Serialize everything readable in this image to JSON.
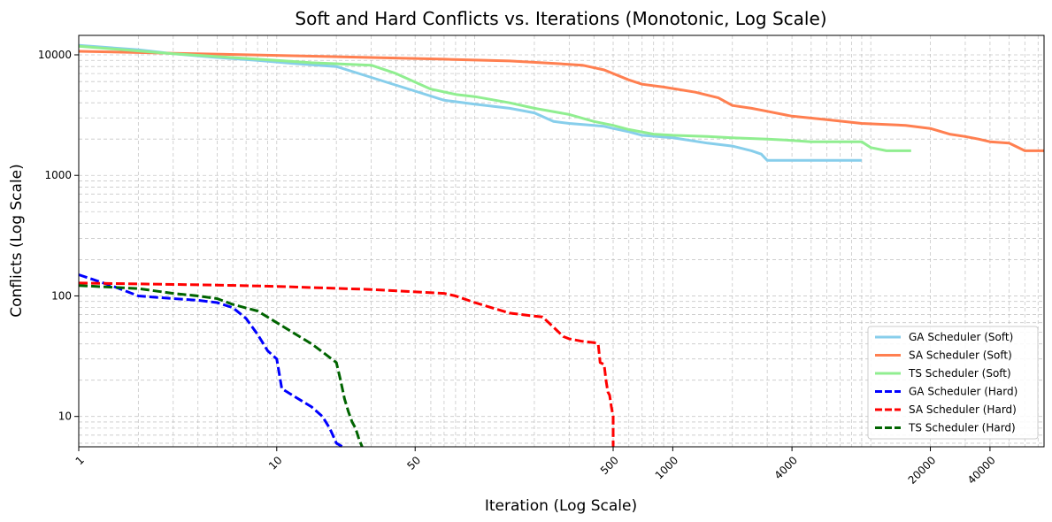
{
  "chart_data": {
    "type": "line",
    "title": "Soft and Hard Conflicts vs. Iterations (Monotonic, Log Scale)",
    "xlabel": "Iteration (Log Scale)",
    "ylabel": "Conflicts (Log Scale)",
    "xscale": "log",
    "yscale": "log",
    "xlim": [
      1,
      75000
    ],
    "ylim": [
      5.6,
      14500
    ],
    "x_ticks": [
      1,
      10,
      50,
      500,
      1000,
      4000,
      20000,
      40000
    ],
    "x_tick_labels": [
      "1",
      "10",
      "50",
      "500",
      "1000",
      "4000",
      "20000",
      "40000"
    ],
    "y_ticks": [
      10,
      100,
      1000,
      10000
    ],
    "y_tick_labels": [
      "10",
      "100",
      "1000",
      "10000"
    ],
    "grid": true,
    "legend_position": "lower-right",
    "series": [
      {
        "name": "GA Scheduler (Soft)",
        "color": "#87CEEB",
        "dash": "solid",
        "points": [
          [
            1,
            12000
          ],
          [
            2,
            11000
          ],
          [
            3,
            10200
          ],
          [
            5,
            9500
          ],
          [
            8,
            9000
          ],
          [
            12,
            8500
          ],
          [
            20,
            8000
          ],
          [
            30,
            6500
          ],
          [
            50,
            5000
          ],
          [
            70,
            4200
          ],
          [
            100,
            3900
          ],
          [
            150,
            3600
          ],
          [
            200,
            3300
          ],
          [
            250,
            2800
          ],
          [
            300,
            2700
          ],
          [
            400,
            2600
          ],
          [
            450,
            2550
          ],
          [
            500,
            2450
          ],
          [
            600,
            2300
          ],
          [
            700,
            2150
          ],
          [
            1000,
            2050
          ],
          [
            1500,
            1850
          ],
          [
            2000,
            1750
          ],
          [
            2500,
            1600
          ],
          [
            2800,
            1500
          ],
          [
            3000,
            1330
          ],
          [
            5000,
            1330
          ],
          [
            9000,
            1330
          ]
        ]
      },
      {
        "name": "SA Scheduler (Soft)",
        "color": "#FF7F50",
        "dash": "solid",
        "points": [
          [
            1,
            10700
          ],
          [
            3,
            10300
          ],
          [
            10,
            9900
          ],
          [
            30,
            9500
          ],
          [
            70,
            9200
          ],
          [
            150,
            8900
          ],
          [
            250,
            8500
          ],
          [
            350,
            8200
          ],
          [
            450,
            7500
          ],
          [
            600,
            6200
          ],
          [
            700,
            5700
          ],
          [
            900,
            5400
          ],
          [
            1300,
            4900
          ],
          [
            1700,
            4400
          ],
          [
            2000,
            3800
          ],
          [
            2500,
            3600
          ],
          [
            3000,
            3400
          ],
          [
            4000,
            3100
          ],
          [
            6000,
            2900
          ],
          [
            9000,
            2700
          ],
          [
            15000,
            2600
          ],
          [
            20000,
            2450
          ],
          [
            25000,
            2200
          ],
          [
            30000,
            2100
          ],
          [
            35000,
            2000
          ],
          [
            40000,
            1900
          ],
          [
            50000,
            1850
          ],
          [
            60000,
            1600
          ],
          [
            75000,
            1600
          ]
        ]
      },
      {
        "name": "TS Scheduler (Soft)",
        "color": "#90EE90",
        "dash": "solid",
        "points": [
          [
            1,
            11800
          ],
          [
            3,
            10200
          ],
          [
            10,
            9000
          ],
          [
            15,
            8600
          ],
          [
            30,
            8200
          ],
          [
            40,
            7000
          ],
          [
            60,
            5200
          ],
          [
            80,
            4700
          ],
          [
            100,
            4500
          ],
          [
            150,
            4000
          ],
          [
            200,
            3600
          ],
          [
            300,
            3200
          ],
          [
            400,
            2800
          ],
          [
            500,
            2600
          ],
          [
            600,
            2400
          ],
          [
            800,
            2200
          ],
          [
            1000,
            2150
          ],
          [
            1500,
            2100
          ],
          [
            2000,
            2050
          ],
          [
            3000,
            2000
          ],
          [
            4000,
            1950
          ],
          [
            5000,
            1900
          ],
          [
            9000,
            1900
          ],
          [
            10000,
            1700
          ],
          [
            12000,
            1600
          ],
          [
            16000,
            1600
          ]
        ]
      },
      {
        "name": "GA Scheduler (Hard)",
        "color": "#0000FF",
        "dash": "dashed",
        "points": [
          [
            1,
            150
          ],
          [
            1.5,
            120
          ],
          [
            2,
            100
          ],
          [
            3,
            95
          ],
          [
            4,
            92
          ],
          [
            5,
            88
          ],
          [
            6,
            80
          ],
          [
            7,
            65
          ],
          [
            8,
            48
          ],
          [
            9,
            35
          ],
          [
            10,
            30
          ],
          [
            10.6,
            17
          ],
          [
            12,
            15
          ],
          [
            15,
            12
          ],
          [
            17,
            10
          ],
          [
            18.5,
            8
          ],
          [
            20,
            6
          ],
          [
            21.5,
            5.6
          ]
        ]
      },
      {
        "name": "SA Scheduler (Hard)",
        "color": "#FF0000",
        "dash": "dashed",
        "points": [
          [
            1,
            128
          ],
          [
            5,
            123
          ],
          [
            10,
            120
          ],
          [
            30,
            113
          ],
          [
            70,
            105
          ],
          [
            80,
            100
          ],
          [
            100,
            88
          ],
          [
            150,
            72
          ],
          [
            200,
            68
          ],
          [
            220,
            67
          ],
          [
            250,
            55
          ],
          [
            280,
            46
          ],
          [
            300,
            44
          ],
          [
            350,
            42
          ],
          [
            400,
            41
          ],
          [
            420,
            40
          ],
          [
            430,
            28
          ],
          [
            450,
            27
          ],
          [
            460,
            20
          ],
          [
            470,
            16
          ],
          [
            480,
            15
          ],
          [
            490,
            12
          ],
          [
            500,
            10
          ],
          [
            500,
            5.6
          ]
        ]
      },
      {
        "name": "TS Scheduler (Hard)",
        "color": "#006400",
        "dash": "dashed",
        "points": [
          [
            1,
            122
          ],
          [
            2,
            115
          ],
          [
            3,
            105
          ],
          [
            4,
            100
          ],
          [
            5,
            95
          ],
          [
            6,
            85
          ],
          [
            8,
            75
          ],
          [
            10,
            60
          ],
          [
            12,
            50
          ],
          [
            15,
            40
          ],
          [
            18,
            32
          ],
          [
            20,
            28
          ],
          [
            21,
            20
          ],
          [
            22,
            14
          ],
          [
            23,
            11
          ],
          [
            24,
            9
          ],
          [
            25,
            8
          ],
          [
            26,
            6.5
          ],
          [
            27,
            5.6
          ]
        ]
      }
    ]
  }
}
